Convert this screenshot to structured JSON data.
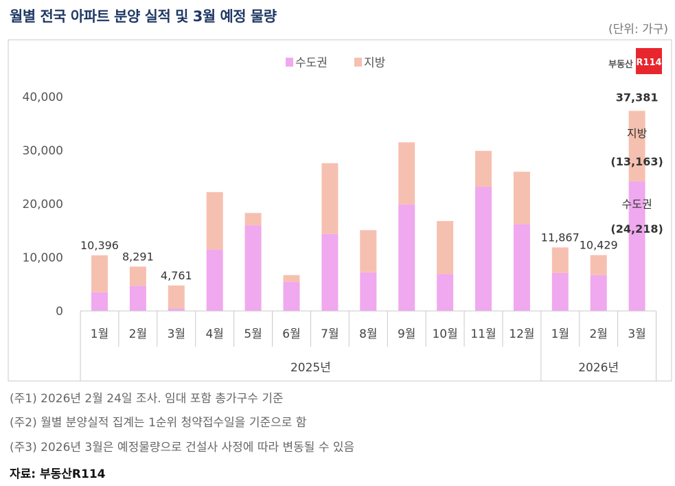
{
  "title": "월별 전국 아파트 분양 실적 및 3월 예정 물량",
  "unit": "(단위: 가구)",
  "logo": {
    "text": "부동산",
    "badge": "R114",
    "badge_color": "#e8262d"
  },
  "notes": [
    "(주1) 2026년 2월 24일 조사. 임대 포함 총가구수 기준",
    "(주2) 월별 분양실적 집계는 1순위 청약접수일을 기준으로 함",
    "(주3) 2026년 3월은 예정물량으로 건설사 사정에 따라 변동될 수 있음"
  ],
  "source": "자료: 부동산R114",
  "chart_data": {
    "type": "bar",
    "stacked": true,
    "categories": [
      "1월",
      "2월",
      "3월",
      "4월",
      "5월",
      "6월",
      "7월",
      "8월",
      "9월",
      "10월",
      "11월",
      "12월",
      "1월",
      "2월",
      "3월"
    ],
    "groups": [
      {
        "label": "2025년",
        "count": 12
      },
      {
        "label": "2026년",
        "count": 3
      }
    ],
    "series": [
      {
        "name": "수도권",
        "color": "#f0a8ee",
        "values": [
          3500,
          4700,
          500,
          11500,
          16000,
          5400,
          14400,
          7200,
          19900,
          6900,
          23200,
          16200,
          7100,
          6700,
          24218
        ]
      },
      {
        "name": "지방",
        "color": "#f6c0b0",
        "values": [
          6896,
          3591,
          4261,
          10700,
          2300,
          1300,
          13200,
          7900,
          11600,
          9900,
          6700,
          9800,
          4767,
          3729,
          13163
        ]
      }
    ],
    "total_labels": [
      "10,396",
      "8,291",
      "4,761",
      "",
      "",
      "",
      "",
      "",
      "",
      "",
      "",
      "",
      "11,867",
      "10,429",
      "37,381"
    ],
    "annotations": {
      "regional_label": "지방",
      "regional_value": "(13,163)",
      "metro_label": "수도권",
      "metro_value": "(24,218)"
    },
    "yticks": [
      "0",
      "10,000",
      "20,000",
      "30,000",
      "40,000"
    ],
    "ylim": [
      0,
      40000
    ],
    "legend": "top-center",
    "grid": false
  }
}
